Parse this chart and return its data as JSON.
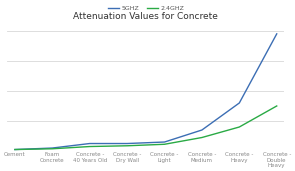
{
  "title": "Attenuation Values for Concrete",
  "categories": [
    "Cement",
    "Foam\nConcrete",
    "Concrete -\n40 Years Old",
    "Concrete -\nDry Wall",
    "Concrete -\nLight",
    "Concrete -\nMedium",
    "Concrete -\nHeavy",
    "Concrete -\nDouble\nHeavy"
  ],
  "5ghz_values": [
    1,
    2,
    5,
    5,
    6,
    14,
    32,
    78
  ],
  "2_4ghz_values": [
    1,
    1.5,
    3,
    3.5,
    4.5,
    9,
    16,
    30
  ],
  "line_color_5ghz": "#3c6eb4",
  "line_color_2_4ghz": "#2aaa45",
  "legend_5ghz": "5GHZ",
  "legend_2_4ghz": "2.4GHZ",
  "background_color": "#ffffff",
  "grid_color": "#d8d8d8",
  "title_fontsize": 6.5,
  "label_fontsize": 4.0,
  "legend_fontsize": 4.5,
  "tick_color": "#888888",
  "ylim": [
    0,
    85
  ],
  "y_ticks": [
    0,
    20,
    40,
    60,
    80
  ]
}
